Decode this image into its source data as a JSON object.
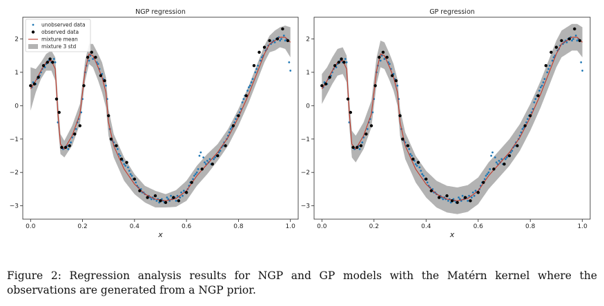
{
  "caption": "Figure 2: Regression analysis results for NGP and GP models with the Matérn kernel where the observations are generated from a NGP prior.",
  "colors": {
    "band": "#b3b3b3",
    "mean": "#c0392b",
    "observed": "#000000",
    "unobserved": "#1f77b4"
  },
  "chart_data": [
    {
      "type": "scatter",
      "title": "NGP regression",
      "xlabel": "x",
      "ylabel": "",
      "xlim": [
        -0.03,
        1.03
      ],
      "ylim": [
        -3.4,
        2.65
      ],
      "xticks": [
        "0.0",
        "0.2",
        "0.4",
        "0.6",
        "0.8",
        "1.0"
      ],
      "yticks": [
        "−3",
        "−2",
        "−1",
        "0",
        "1",
        "2"
      ],
      "legend": {
        "position": "top-left",
        "entries": [
          "unobserved data",
          "observed data",
          "mixture mean",
          "mixture 3 std"
        ]
      },
      "grid": false,
      "mean": {
        "x": [
          0.0,
          0.02,
          0.04,
          0.06,
          0.08,
          0.095,
          0.105,
          0.115,
          0.13,
          0.16,
          0.19,
          0.21,
          0.225,
          0.24,
          0.26,
          0.275,
          0.29,
          0.3,
          0.32,
          0.36,
          0.4,
          0.44,
          0.48,
          0.52,
          0.56,
          0.6,
          0.64,
          0.68,
          0.72,
          0.76,
          0.8,
          0.84,
          0.88,
          0.9,
          0.92,
          0.94,
          0.96,
          0.98,
          1.0
        ],
        "y": [
          0.5,
          0.75,
          1.05,
          1.3,
          1.35,
          1.1,
          -0.2,
          -1.15,
          -1.3,
          -0.9,
          -0.25,
          1.05,
          1.55,
          1.5,
          1.15,
          0.85,
          0.4,
          -0.5,
          -1.2,
          -1.9,
          -2.35,
          -2.65,
          -2.8,
          -2.85,
          -2.78,
          -2.55,
          -2.1,
          -1.75,
          -1.4,
          -0.95,
          -0.35,
          0.35,
          1.15,
          1.55,
          1.85,
          1.95,
          2.05,
          2.05,
          1.9
        ]
      },
      "std3": [
        0.65,
        0.35,
        0.25,
        0.25,
        0.3,
        0.35,
        0.4,
        0.3,
        0.25,
        0.3,
        0.3,
        0.3,
        0.3,
        0.35,
        0.4,
        0.45,
        0.45,
        0.4,
        0.35,
        0.35,
        0.3,
        0.25,
        0.25,
        0.2,
        0.25,
        0.3,
        0.3,
        0.3,
        0.25,
        0.25,
        0.25,
        0.25,
        0.25,
        0.25,
        0.25,
        0.3,
        0.3,
        0.35,
        0.45
      ]
    },
    {
      "type": "scatter",
      "title": "GP regression",
      "xlabel": "x",
      "ylabel": "",
      "xlim": [
        -0.03,
        1.03
      ],
      "ylim": [
        -3.4,
        2.65
      ],
      "xticks": [
        "0.0",
        "0.2",
        "0.4",
        "0.6",
        "0.8",
        "1.0"
      ],
      "yticks": [
        "−3",
        "−2",
        "−1",
        "0",
        "1",
        "2"
      ],
      "legend": null,
      "grid": false,
      "mean": {
        "x": [
          0.0,
          0.02,
          0.04,
          0.06,
          0.08,
          0.095,
          0.105,
          0.115,
          0.13,
          0.16,
          0.19,
          0.21,
          0.225,
          0.24,
          0.26,
          0.275,
          0.29,
          0.3,
          0.32,
          0.36,
          0.4,
          0.44,
          0.48,
          0.52,
          0.56,
          0.6,
          0.64,
          0.68,
          0.72,
          0.76,
          0.8,
          0.84,
          0.88,
          0.9,
          0.92,
          0.94,
          0.96,
          0.98,
          1.0
        ],
        "y": [
          0.5,
          0.75,
          1.05,
          1.3,
          1.35,
          1.1,
          -0.2,
          -1.15,
          -1.3,
          -0.9,
          -0.25,
          1.05,
          1.55,
          1.5,
          1.15,
          0.85,
          0.4,
          -0.5,
          -1.2,
          -1.9,
          -2.35,
          -2.65,
          -2.8,
          -2.85,
          -2.78,
          -2.55,
          -2.1,
          -1.75,
          -1.4,
          -0.95,
          -0.35,
          0.35,
          1.15,
          1.55,
          1.85,
          1.95,
          2.05,
          2.05,
          1.9
        ]
      },
      "std3": [
        0.45,
        0.4,
        0.4,
        0.4,
        0.4,
        0.4,
        0.4,
        0.4,
        0.4,
        0.4,
        0.4,
        0.4,
        0.4,
        0.4,
        0.4,
        0.4,
        0.4,
        0.4,
        0.4,
        0.4,
        0.4,
        0.4,
        0.4,
        0.4,
        0.4,
        0.4,
        0.4,
        0.4,
        0.4,
        0.4,
        0.4,
        0.4,
        0.4,
        0.4,
        0.4,
        0.4,
        0.4,
        0.4,
        0.45
      ]
    }
  ],
  "observed_points": {
    "x": [
      0.0,
      0.015,
      0.03,
      0.05,
      0.065,
      0.075,
      0.085,
      0.1,
      0.11,
      0.12,
      0.135,
      0.15,
      0.17,
      0.19,
      0.205,
      0.22,
      0.235,
      0.25,
      0.27,
      0.285,
      0.3,
      0.31,
      0.33,
      0.35,
      0.37,
      0.4,
      0.42,
      0.45,
      0.48,
      0.5,
      0.52,
      0.55,
      0.57,
      0.6,
      0.62,
      0.66,
      0.7,
      0.72,
      0.75,
      0.78,
      0.8,
      0.83,
      0.86,
      0.88,
      0.9,
      0.92,
      0.95,
      0.97,
      0.99
    ],
    "y": [
      0.6,
      0.65,
      0.85,
      1.2,
      1.3,
      1.4,
      1.3,
      0.2,
      -0.2,
      -1.25,
      -1.25,
      -1.2,
      -0.85,
      -0.6,
      0.6,
      1.45,
      1.6,
      1.45,
      0.9,
      0.75,
      -0.3,
      -1.0,
      -1.2,
      -1.6,
      -1.7,
      -2.2,
      -2.55,
      -2.75,
      -2.7,
      -2.85,
      -2.9,
      -2.75,
      -2.85,
      -2.6,
      -2.3,
      -1.9,
      -1.75,
      -1.5,
      -1.2,
      -0.6,
      -0.3,
      0.3,
      1.2,
      1.6,
      1.75,
      1.95,
      2.0,
      2.3,
      1.95
    ]
  },
  "unobserved_points": {
    "x": [
      0.005,
      0.01,
      0.02,
      0.025,
      0.035,
      0.04,
      0.045,
      0.055,
      0.06,
      0.07,
      0.08,
      0.09,
      0.095,
      0.105,
      0.125,
      0.14,
      0.145,
      0.155,
      0.16,
      0.165,
      0.175,
      0.18,
      0.185,
      0.195,
      0.2,
      0.21,
      0.215,
      0.225,
      0.23,
      0.24,
      0.245,
      0.255,
      0.26,
      0.265,
      0.275,
      0.28,
      0.29,
      0.295,
      0.305,
      0.315,
      0.32,
      0.325,
      0.335,
      0.34,
      0.345,
      0.355,
      0.36,
      0.365,
      0.375,
      0.38,
      0.385,
      0.39,
      0.395,
      0.405,
      0.41,
      0.415,
      0.425,
      0.43,
      0.435,
      0.44,
      0.455,
      0.46,
      0.465,
      0.47,
      0.475,
      0.485,
      0.49,
      0.495,
      0.505,
      0.51,
      0.515,
      0.525,
      0.53,
      0.535,
      0.54,
      0.545,
      0.555,
      0.56,
      0.565,
      0.575,
      0.58,
      0.585,
      0.59,
      0.595,
      0.605,
      0.61,
      0.615,
      0.625,
      0.63,
      0.635,
      0.64,
      0.645,
      0.65,
      0.655,
      0.665,
      0.67,
      0.675,
      0.68,
      0.685,
      0.69,
      0.695,
      0.705,
      0.71,
      0.715,
      0.725,
      0.73,
      0.735,
      0.74,
      0.745,
      0.755,
      0.76,
      0.765,
      0.77,
      0.775,
      0.785,
      0.79,
      0.795,
      0.805,
      0.81,
      0.815,
      0.82,
      0.825,
      0.835,
      0.84,
      0.845,
      0.85,
      0.855,
      0.865,
      0.87,
      0.875,
      0.885,
      0.89,
      0.895,
      0.905,
      0.91,
      0.915,
      0.925,
      0.93,
      0.935,
      0.94,
      0.945,
      0.955,
      0.96,
      0.965,
      0.975,
      0.98,
      0.985,
      0.995,
      1.0
    ],
    "y": [
      0.55,
      0.7,
      0.65,
      0.8,
      0.9,
      1.0,
      1.1,
      1.15,
      1.25,
      1.35,
      1.3,
      1.4,
      1.3,
      -0.5,
      -1.3,
      -1.2,
      -1.3,
      -1.1,
      -0.95,
      -0.85,
      -0.7,
      -0.5,
      -0.4,
      -0.2,
      0.2,
      1.0,
      1.2,
      1.35,
      1.5,
      1.4,
      1.45,
      1.3,
      1.25,
      1.1,
      0.95,
      0.8,
      0.6,
      0.2,
      -0.7,
      -1.05,
      -1.1,
      -1.2,
      -1.3,
      -1.45,
      -1.5,
      -1.65,
      -1.75,
      -1.8,
      -1.85,
      -1.95,
      -2.05,
      -2.1,
      -2.2,
      -2.3,
      -2.4,
      -2.45,
      -2.5,
      -2.6,
      -2.6,
      -2.65,
      -2.7,
      -2.75,
      -2.8,
      -2.75,
      -2.8,
      -2.85,
      -2.8,
      -2.9,
      -2.8,
      -2.85,
      -2.9,
      -2.75,
      -2.8,
      -2.85,
      -2.7,
      -2.8,
      -2.75,
      -2.85,
      -2.7,
      -2.75,
      -2.6,
      -2.7,
      -2.55,
      -2.6,
      -2.5,
      -2.4,
      -2.3,
      -2.2,
      -2.1,
      -2.05,
      -2.0,
      -1.9,
      -1.5,
      -1.4,
      -1.55,
      -1.7,
      -1.75,
      -1.65,
      -1.7,
      -1.6,
      -1.75,
      -1.6,
      -1.55,
      -1.5,
      -1.4,
      -1.35,
      -1.25,
      -1.2,
      -1.1,
      -1.0,
      -0.9,
      -0.8,
      -0.7,
      -0.65,
      -0.5,
      -0.4,
      -0.3,
      -0.2,
      -0.1,
      0.1,
      0.2,
      0.3,
      0.45,
      0.55,
      0.6,
      0.7,
      0.8,
      1.0,
      1.1,
      1.2,
      1.35,
      1.45,
      1.5,
      1.65,
      1.7,
      1.8,
      1.85,
      1.9,
      1.95,
      1.9,
      2.0,
      2.05,
      1.95,
      2.0,
      2.1,
      1.95,
      2.0,
      1.3,
      1.05
    ]
  }
}
